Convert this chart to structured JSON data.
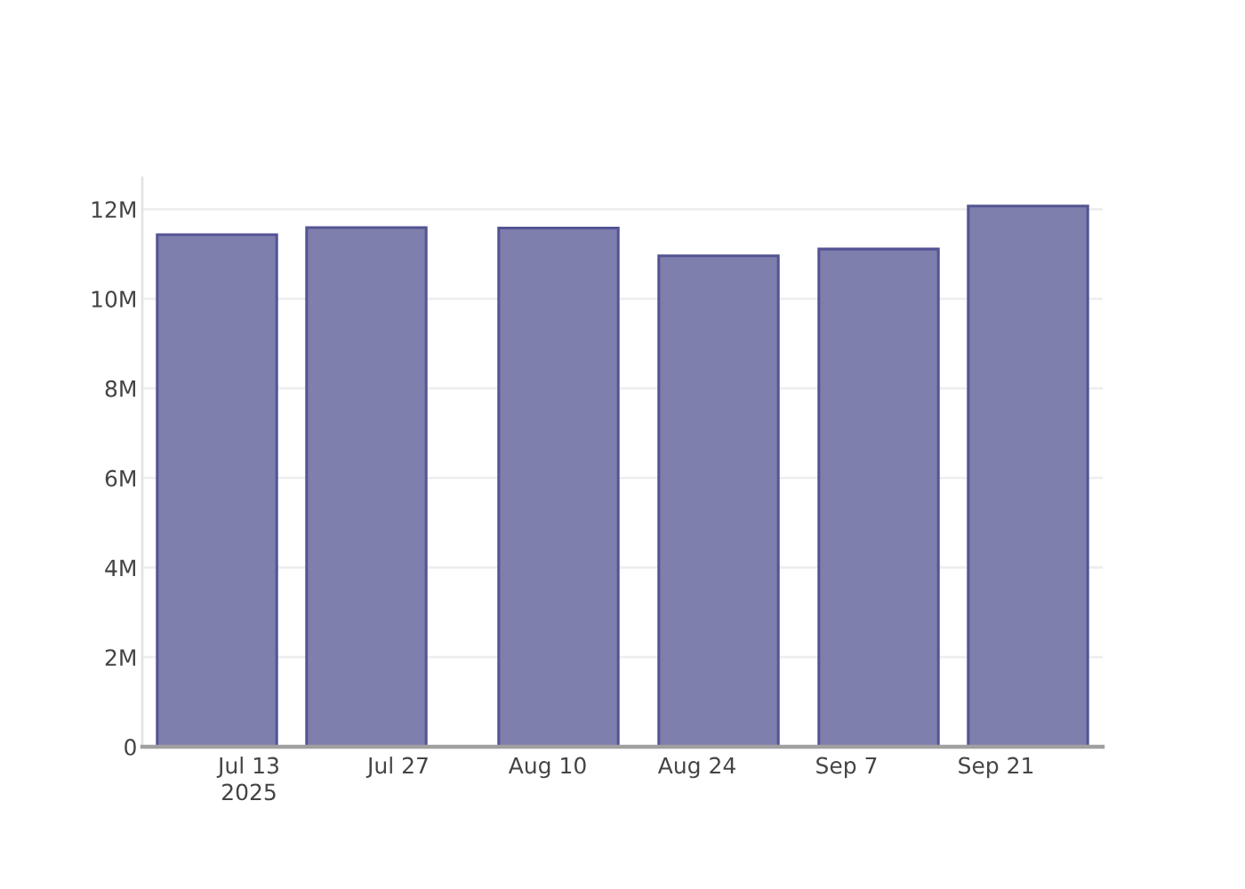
{
  "chart_data": {
    "type": "bar",
    "x": [
      "2025-07-10",
      "2025-07-24",
      "2025-08-11",
      "2025-08-26",
      "2025-09-10",
      "2025-09-24"
    ],
    "series": [
      {
        "color": "#7f7fae",
        "values": [
          11430000,
          11590000,
          11580000,
          10960000,
          11110000,
          12070000
        ]
      }
    ],
    "xlim": [
      "2025-07-03",
      "2025-10-01"
    ],
    "xticks": [
      {
        "value": "2025-07-13",
        "label": "Jul 13\n2025"
      },
      {
        "value": "2025-07-27",
        "label": "Jul 27"
      },
      {
        "value": "2025-08-10",
        "label": "Aug 10"
      },
      {
        "value": "2025-08-24",
        "label": "Aug 24"
      },
      {
        "value": "2025-09-07",
        "label": "Sep 7"
      },
      {
        "value": "2025-09-21",
        "label": "Sep 21"
      }
    ],
    "ylim": [
      0,
      12700000
    ],
    "yticks": [
      0,
      {
        "value": 2000000,
        "label": "2M"
      },
      {
        "value": 4000000,
        "label": "4M"
      },
      {
        "value": 6000000,
        "label": "6M"
      },
      {
        "value": 8000000,
        "label": "8M"
      },
      {
        "value": 10000000,
        "label": "10M"
      },
      {
        "value": 12000000,
        "label": "12M"
      }
    ],
    "grid": "y"
  }
}
